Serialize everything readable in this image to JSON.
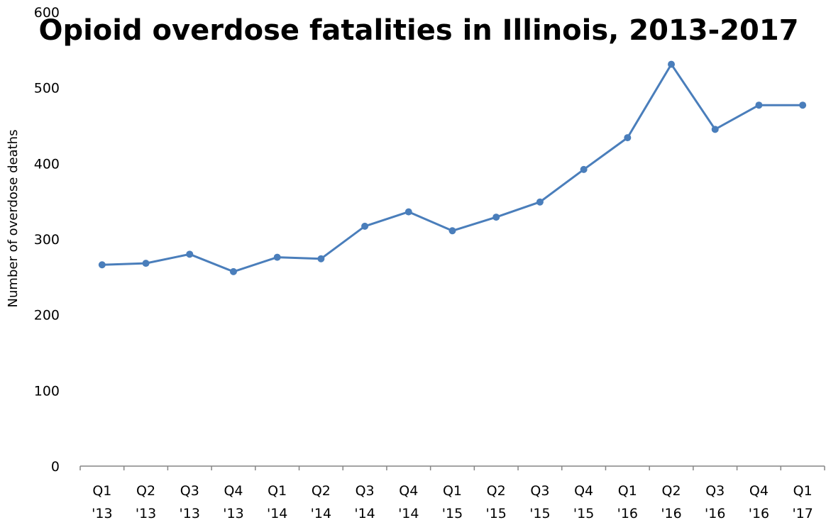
{
  "chart_data": {
    "type": "line",
    "title": "Opioid overdose fatalities in Illinois, 2013-2017",
    "xlabel": "",
    "ylabel": "Number of overdose deaths",
    "ylim": [
      0,
      600
    ],
    "y_ticks": [
      "0",
      "100",
      "200",
      "300",
      "400",
      "500",
      "600"
    ],
    "categories": [
      {
        "q": "Q1",
        "y": "'13"
      },
      {
        "q": "Q2",
        "y": "'13"
      },
      {
        "q": "Q3",
        "y": "'13"
      },
      {
        "q": "Q4",
        "y": "'13"
      },
      {
        "q": "Q1",
        "y": "'14"
      },
      {
        "q": "Q2",
        "y": "'14"
      },
      {
        "q": "Q3",
        "y": "'14"
      },
      {
        "q": "Q4",
        "y": "'14"
      },
      {
        "q": "Q1",
        "y": "'15"
      },
      {
        "q": "Q2",
        "y": "'15"
      },
      {
        "q": "Q3",
        "y": "'15"
      },
      {
        "q": "Q4",
        "y": "'15"
      },
      {
        "q": "Q1",
        "y": "'16"
      },
      {
        "q": "Q2",
        "y": "'16"
      },
      {
        "q": "Q3",
        "y": "'16"
      },
      {
        "q": "Q4",
        "y": "'16"
      },
      {
        "q": "Q1",
        "y": "'17"
      }
    ],
    "series": [
      {
        "values": [
          266,
          268,
          280,
          257,
          276,
          274,
          317,
          336,
          311,
          329,
          349,
          392,
          434,
          531,
          445,
          477,
          477
        ]
      }
    ],
    "line_color": "#4a7ebb",
    "axis_color": "#868686",
    "grid": false,
    "legend": "none"
  }
}
